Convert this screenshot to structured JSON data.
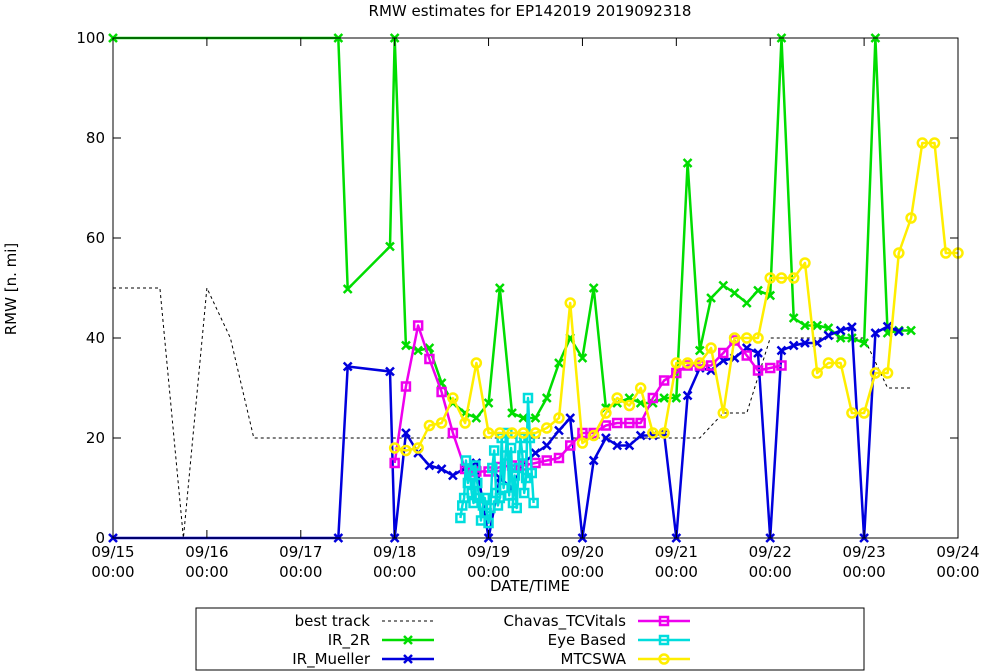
{
  "chart_data": {
    "type": "line",
    "title": "RMW estimates for EP142019 2019092318",
    "xlabel": "DATE/TIME",
    "ylabel": "RMW [n. mi]",
    "ylim": [
      0,
      100
    ],
    "xlim": [
      0,
      9
    ],
    "y_ticks": [
      "0",
      "20",
      "40",
      "60",
      "80",
      "100"
    ],
    "x_ticks": [
      {
        "date": "09/15",
        "time": "00:00"
      },
      {
        "date": "09/16",
        "time": "00:00"
      },
      {
        "date": "09/17",
        "time": "00:00"
      },
      {
        "date": "09/18",
        "time": "00:00"
      },
      {
        "date": "09/19",
        "time": "00:00"
      },
      {
        "date": "09/20",
        "time": "00:00"
      },
      {
        "date": "09/21",
        "time": "00:00"
      },
      {
        "date": "09/22",
        "time": "00:00"
      },
      {
        "date": "09/23",
        "time": "00:00"
      },
      {
        "date": "09/24",
        "time": "00:00"
      }
    ],
    "legend_position": "bottom",
    "series": [
      {
        "name": "best track",
        "color": "#000000",
        "style": "dotted",
        "marker": "none",
        "points": [
          [
            0,
            50
          ],
          [
            0.5,
            50
          ],
          [
            0.75,
            0
          ],
          [
            1.0,
            50
          ],
          [
            1.25,
            40
          ],
          [
            1.5,
            20
          ],
          [
            2,
            20
          ],
          [
            3,
            20
          ],
          [
            4,
            20
          ],
          [
            5,
            20
          ],
          [
            6,
            20
          ],
          [
            6.25,
            20
          ],
          [
            6.5,
            25
          ],
          [
            6.75,
            25
          ],
          [
            7,
            40
          ],
          [
            7.5,
            40
          ],
          [
            8,
            40
          ],
          [
            8.25,
            30
          ],
          [
            8.5,
            30
          ]
        ]
      },
      {
        "name": "IR_2R",
        "color": "#00dd00",
        "style": "solid",
        "marker": "x",
        "points": [
          [
            0,
            100
          ],
          [
            2.4,
            100
          ],
          [
            2.5,
            49.8
          ],
          [
            2.95,
            58.3
          ],
          [
            3.0,
            100
          ],
          [
            3.12,
            38.5
          ],
          [
            3.25,
            37.5
          ],
          [
            3.37,
            38
          ],
          [
            3.5,
            31
          ],
          [
            3.62,
            27
          ],
          [
            3.75,
            25
          ],
          [
            3.87,
            24
          ],
          [
            4.0,
            27
          ],
          [
            4.12,
            50
          ],
          [
            4.25,
            25
          ],
          [
            4.37,
            24
          ],
          [
            4.5,
            24
          ],
          [
            4.62,
            28
          ],
          [
            4.75,
            35
          ],
          [
            4.87,
            40
          ],
          [
            5.0,
            36
          ],
          [
            5.12,
            50
          ],
          [
            5.25,
            26
          ],
          [
            5.37,
            27
          ],
          [
            5.5,
            28
          ],
          [
            5.62,
            27
          ],
          [
            5.75,
            27
          ],
          [
            5.87,
            28
          ],
          [
            6.0,
            28
          ],
          [
            6.12,
            75
          ],
          [
            6.25,
            37.5
          ],
          [
            6.37,
            48
          ],
          [
            6.5,
            50.5
          ],
          [
            6.62,
            49
          ],
          [
            6.75,
            47
          ],
          [
            6.87,
            49.5
          ],
          [
            7.0,
            48.5
          ],
          [
            7.12,
            100
          ],
          [
            7.25,
            44
          ],
          [
            7.37,
            42.5
          ],
          [
            7.5,
            42.5
          ],
          [
            7.62,
            42
          ],
          [
            7.75,
            40
          ],
          [
            7.87,
            40
          ],
          [
            8.0,
            39
          ],
          [
            8.12,
            100
          ],
          [
            8.25,
            41
          ],
          [
            8.37,
            41.5
          ],
          [
            8.5,
            41.5
          ]
        ]
      },
      {
        "name": "IR_Mueller",
        "color": "#0000dd",
        "style": "solid",
        "marker": "x",
        "points": [
          [
            0,
            0
          ],
          [
            2.4,
            0
          ],
          [
            2.5,
            34.3
          ],
          [
            2.95,
            33.3
          ],
          [
            3.0,
            0
          ],
          [
            3.12,
            21
          ],
          [
            3.25,
            17
          ],
          [
            3.37,
            14.5
          ],
          [
            3.5,
            13.8
          ],
          [
            3.62,
            12.5
          ],
          [
            3.75,
            14
          ],
          [
            3.87,
            15
          ],
          [
            4.0,
            0
          ],
          [
            4.12,
            12
          ],
          [
            4.25,
            10
          ],
          [
            4.37,
            15
          ],
          [
            4.5,
            17
          ],
          [
            4.62,
            18.5
          ],
          [
            4.75,
            21.5
          ],
          [
            4.87,
            24
          ],
          [
            5.0,
            0
          ],
          [
            5.12,
            15.5
          ],
          [
            5.25,
            20
          ],
          [
            5.37,
            18.5
          ],
          [
            5.5,
            18.5
          ],
          [
            5.62,
            20.5
          ],
          [
            5.75,
            20.5
          ],
          [
            5.87,
            21
          ],
          [
            6.0,
            0
          ],
          [
            6.12,
            28.5
          ],
          [
            6.25,
            34
          ],
          [
            6.37,
            33.5
          ],
          [
            6.5,
            35.5
          ],
          [
            6.62,
            36
          ],
          [
            6.75,
            38
          ],
          [
            6.87,
            37
          ],
          [
            7.0,
            0
          ],
          [
            7.12,
            37.5
          ],
          [
            7.25,
            38.5
          ],
          [
            7.37,
            39
          ],
          [
            7.5,
            39
          ],
          [
            7.62,
            40.5
          ],
          [
            7.75,
            41.5
          ],
          [
            7.87,
            42.2
          ],
          [
            8.0,
            0
          ],
          [
            8.12,
            41
          ],
          [
            8.25,
            42.3
          ],
          [
            8.37,
            41.3
          ]
        ]
      },
      {
        "name": "Chavas_TCVitals",
        "color": "#ee00ee",
        "style": "solid",
        "marker": "square",
        "points": [
          [
            3.0,
            15
          ],
          [
            3.12,
            30.3
          ],
          [
            3.25,
            42.5
          ],
          [
            3.37,
            35.8
          ],
          [
            3.5,
            29.2
          ],
          [
            3.62,
            21
          ],
          [
            3.75,
            13.8
          ],
          [
            3.87,
            13.3
          ],
          [
            4.0,
            13.3
          ],
          [
            4.12,
            14.2
          ],
          [
            4.25,
            14.5
          ],
          [
            4.37,
            14.5
          ],
          [
            4.5,
            15
          ],
          [
            4.62,
            15.5
          ],
          [
            4.75,
            16
          ],
          [
            4.87,
            18.5
          ],
          [
            5.0,
            21
          ],
          [
            5.12,
            21
          ],
          [
            5.25,
            22.5
          ],
          [
            5.37,
            23
          ],
          [
            5.5,
            23
          ],
          [
            5.62,
            23
          ],
          [
            5.75,
            28
          ],
          [
            5.87,
            31.5
          ],
          [
            6.0,
            33
          ],
          [
            6.12,
            34.5
          ],
          [
            6.25,
            34.5
          ],
          [
            6.37,
            34.5
          ],
          [
            6.5,
            37
          ],
          [
            6.62,
            39.5
          ],
          [
            6.75,
            36.5
          ],
          [
            6.87,
            33.5
          ],
          [
            7.0,
            34
          ],
          [
            7.12,
            34.5
          ]
        ]
      },
      {
        "name": "Eye Based",
        "color": "#00dddd",
        "style": "solid",
        "marker": "square",
        "points": [
          [
            3.7,
            4
          ],
          [
            3.72,
            6.5
          ],
          [
            3.74,
            8
          ],
          [
            3.76,
            15.5
          ],
          [
            3.78,
            11
          ],
          [
            3.8,
            13.5
          ],
          [
            3.82,
            9
          ],
          [
            3.84,
            7
          ],
          [
            3.86,
            14.5
          ],
          [
            3.88,
            11
          ],
          [
            3.9,
            8
          ],
          [
            3.92,
            3.5
          ],
          [
            3.94,
            6.5
          ],
          [
            3.96,
            8
          ],
          [
            3.98,
            5
          ],
          [
            4.0,
            3
          ],
          [
            4.02,
            6
          ],
          [
            4.04,
            14
          ],
          [
            4.06,
            17.5
          ],
          [
            4.08,
            9
          ],
          [
            4.1,
            6.5
          ],
          [
            4.12,
            8
          ],
          [
            4.14,
            20
          ],
          [
            4.16,
            10
          ],
          [
            4.18,
            16.5
          ],
          [
            4.2,
            21
          ],
          [
            4.22,
            8.5
          ],
          [
            4.24,
            18
          ],
          [
            4.26,
            7
          ],
          [
            4.28,
            12.5
          ],
          [
            4.3,
            6
          ],
          [
            4.32,
            14
          ],
          [
            4.34,
            20
          ],
          [
            4.36,
            16.5
          ],
          [
            4.38,
            9
          ],
          [
            4.4,
            12
          ],
          [
            4.42,
            28
          ],
          [
            4.44,
            20
          ],
          [
            4.46,
            13
          ],
          [
            4.48,
            7
          ]
        ]
      },
      {
        "name": "MTCSWA",
        "color": "#ffee00",
        "style": "solid",
        "marker": "circle",
        "points": [
          [
            3.0,
            18
          ],
          [
            3.12,
            17.5
          ],
          [
            3.25,
            18
          ],
          [
            3.37,
            22.5
          ],
          [
            3.5,
            23
          ],
          [
            3.62,
            28
          ],
          [
            3.75,
            23
          ],
          [
            3.87,
            35
          ],
          [
            4.0,
            21
          ],
          [
            4.12,
            21
          ],
          [
            4.25,
            21
          ],
          [
            4.37,
            21
          ],
          [
            4.5,
            21
          ],
          [
            4.62,
            22
          ],
          [
            4.75,
            24
          ],
          [
            4.87,
            47
          ],
          [
            5.0,
            19
          ],
          [
            5.12,
            20.5
          ],
          [
            5.25,
            25
          ],
          [
            5.37,
            28
          ],
          [
            5.5,
            26.5
          ],
          [
            5.62,
            30
          ],
          [
            5.75,
            21
          ],
          [
            5.87,
            21
          ],
          [
            6.0,
            35
          ],
          [
            6.12,
            35
          ],
          [
            6.25,
            35
          ],
          [
            6.37,
            38
          ],
          [
            6.5,
            25
          ],
          [
            6.62,
            40
          ],
          [
            6.75,
            40
          ],
          [
            6.87,
            40
          ],
          [
            7.0,
            52
          ],
          [
            7.12,
            52
          ],
          [
            7.25,
            52
          ],
          [
            7.37,
            55
          ],
          [
            7.5,
            33
          ],
          [
            7.62,
            35
          ],
          [
            7.75,
            35
          ],
          [
            7.87,
            25
          ],
          [
            8.0,
            25
          ],
          [
            8.12,
            33
          ],
          [
            8.25,
            33
          ],
          [
            8.37,
            57
          ],
          [
            8.5,
            64
          ],
          [
            8.62,
            79
          ],
          [
            8.75,
            79
          ],
          [
            8.87,
            57
          ],
          [
            9.0,
            57
          ]
        ]
      }
    ]
  }
}
